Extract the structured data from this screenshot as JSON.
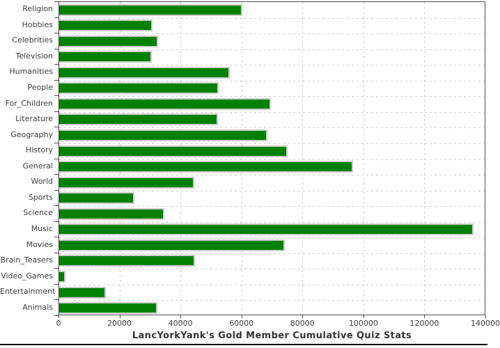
{
  "chart_data": {
    "type": "bar",
    "orientation": "horizontal",
    "title": "LancYorkYank's Gold Member Cumulative Quiz Stats",
    "categories": [
      "Religion",
      "Hobbies",
      "Celebrities",
      "Television",
      "Humanities",
      "People",
      "For_Children",
      "Literature",
      "Geography",
      "History",
      "General",
      "World",
      "Sports",
      "Science",
      "Music",
      "Movies",
      "Brain_Teasers",
      "Video_Games",
      "Entertainment",
      "Animals"
    ],
    "values": [
      60000,
      30500,
      32500,
      30400,
      56000,
      52300,
      69500,
      52100,
      68400,
      74800,
      96300,
      44200,
      24700,
      34600,
      135800,
      74100,
      44600,
      2100,
      15400,
      32200
    ],
    "xlabel": "",
    "ylabel": "",
    "xlim": [
      0,
      140000
    ],
    "xticks": [
      "0",
      "20000",
      "40000",
      "60000",
      "80000",
      "100000",
      "120000",
      "140000"
    ],
    "xtick_values": [
      0,
      20000,
      40000,
      60000,
      80000,
      100000,
      120000,
      140000
    ],
    "grid": "dashed-both-axes",
    "legend": "none",
    "bar_color": "#008000",
    "bar_border_color": "#cccccc",
    "grid_color": "#cccccc",
    "frame_color": "#4a4a4a",
    "text_color": "#3c3c3c"
  }
}
